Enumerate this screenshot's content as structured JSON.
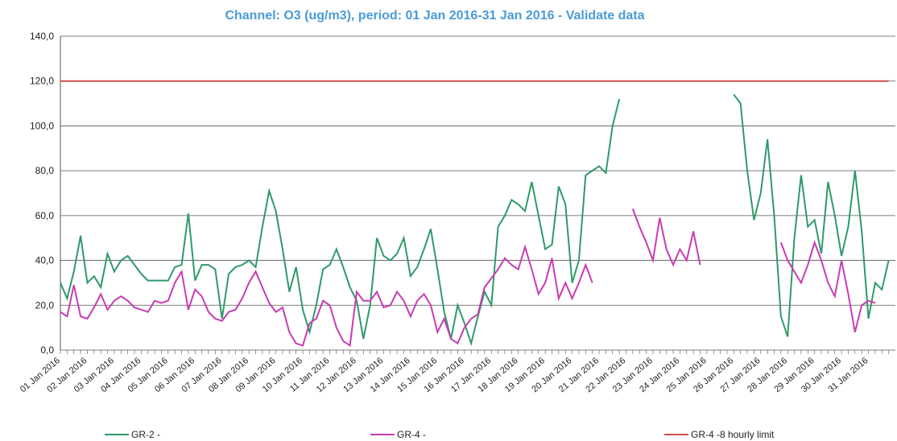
{
  "chart_data": {
    "type": "line",
    "title": "Channel: O3 (ug/m3), period: 01 Jan 2016-31 Jan 2016 - Validate data",
    "categories": [
      "01 Jan 2016",
      null,
      null,
      null,
      "02 Jan 2016",
      null,
      null,
      null,
      "03 Jan 2016",
      null,
      null,
      null,
      "04 Jan 2016",
      null,
      null,
      null,
      "05 Jan 2016",
      null,
      null,
      null,
      "06 Jan 2016",
      null,
      null,
      null,
      "07 Jan 2016",
      null,
      null,
      null,
      "08 Jan 2016",
      null,
      null,
      null,
      "09 Jan 2016",
      null,
      null,
      null,
      "10 Jan 2016",
      null,
      null,
      null,
      "11 Jan 2016",
      null,
      null,
      null,
      "12 Jan 2016",
      null,
      null,
      null,
      "13 Jan 2016",
      null,
      null,
      null,
      "14 Jan 2016",
      null,
      null,
      null,
      "15 Jan 2016",
      null,
      null,
      null,
      "16 Jan 2016",
      null,
      null,
      null,
      "17 Jan 2016",
      null,
      null,
      null,
      "18 Jan 2016",
      null,
      null,
      null,
      "19 Jan 2016",
      null,
      null,
      null,
      "20 Jan 2016",
      null,
      null,
      null,
      "21 Jan 2016",
      null,
      null,
      null,
      "22 Jan 2016",
      null,
      null,
      null,
      "23 Jan 2016",
      null,
      null,
      null,
      "24 Jan 2016",
      null,
      null,
      null,
      "25 Jan 2016",
      null,
      null,
      null,
      "26 Jan 2016",
      null,
      null,
      null,
      "27 Jan 2016",
      null,
      null,
      null,
      "28 Jan 2016",
      null,
      null,
      null,
      "29 Jan 2016",
      null,
      null,
      null,
      "30 Jan 2016",
      null,
      null,
      null,
      "31 Jan 2016",
      null,
      null,
      null
    ],
    "series": [
      {
        "name": "GR-2 -",
        "color": "#2e9a6a",
        "values": [
          30,
          23,
          35,
          51,
          30,
          33,
          28,
          43,
          35,
          40,
          42,
          38,
          34,
          31,
          31,
          31,
          31,
          37,
          38,
          61,
          31,
          38,
          38,
          36,
          14,
          34,
          37,
          38,
          40,
          37,
          55,
          71,
          62,
          45,
          26,
          37,
          18,
          8,
          20,
          36,
          38,
          45,
          37,
          28,
          22,
          5,
          20,
          50,
          42,
          40,
          43,
          50,
          33,
          37,
          45,
          54,
          36,
          17,
          5,
          20,
          12,
          3,
          15,
          26,
          20,
          55,
          60,
          67,
          65,
          62,
          75,
          60,
          45,
          47,
          73,
          65,
          30,
          40,
          78,
          80,
          82,
          79,
          100,
          112,
          null,
          null,
          null,
          null,
          null,
          null,
          null,
          null,
          null,
          null,
          null,
          null,
          null,
          null,
          null,
          null,
          114,
          110,
          80,
          58,
          70,
          94,
          60,
          15,
          6,
          50,
          78,
          55,
          58,
          43,
          75,
          60,
          42,
          55,
          80,
          53,
          14,
          30,
          27,
          40
        ]
      },
      {
        "name": "GR-4 -",
        "color": "#c83cb4",
        "values": [
          17,
          15,
          29,
          15,
          14,
          19,
          25,
          18,
          22,
          24,
          22,
          19,
          18,
          17,
          22,
          21,
          22,
          30,
          35,
          18,
          27,
          24,
          17,
          14,
          13,
          17,
          18,
          23,
          30,
          35,
          28,
          21,
          17,
          19,
          8,
          3,
          2,
          12,
          14,
          22,
          20,
          10,
          4,
          2,
          26,
          22,
          22,
          26,
          19,
          20,
          26,
          22,
          15,
          22,
          25,
          20,
          8,
          14,
          5,
          3,
          10,
          14,
          16,
          28,
          32,
          36,
          41,
          38,
          36,
          46,
          36,
          25,
          30,
          41,
          23,
          30,
          23,
          30,
          38,
          30,
          null,
          null,
          null,
          null,
          null,
          63,
          55,
          48,
          40,
          59,
          45,
          38,
          45,
          40,
          53,
          38,
          null,
          null,
          null,
          null,
          null,
          null,
          null,
          null,
          null,
          null,
          null,
          48,
          40,
          35,
          30,
          38,
          48,
          40,
          30,
          24,
          40,
          25,
          8,
          20,
          22,
          21,
          null,
          null
        ]
      },
      {
        "name": "GR-4 -8 hourly limit",
        "color": "#d0504a",
        "values": [
          120,
          120,
          120,
          120,
          120,
          120,
          120,
          120,
          120,
          120,
          120,
          120,
          120,
          120,
          120,
          120,
          120,
          120,
          120,
          120,
          120,
          120,
          120,
          120,
          120,
          120,
          120,
          120,
          120,
          120,
          120,
          120,
          120,
          120,
          120,
          120,
          120,
          120,
          120,
          120,
          120,
          120,
          120,
          120,
          120,
          120,
          120,
          120,
          120,
          120,
          120,
          120,
          120,
          120,
          120,
          120,
          120,
          120,
          120,
          120,
          120,
          120,
          120,
          120,
          120,
          120,
          120,
          120,
          120,
          120,
          120,
          120,
          120,
          120,
          120,
          120,
          120,
          120,
          120,
          120,
          120,
          120,
          120,
          120,
          120,
          120,
          120,
          120,
          120,
          120,
          120,
          120,
          120,
          120,
          120,
          120,
          120,
          120,
          120,
          120,
          120,
          120,
          120,
          120,
          120,
          120,
          120,
          120,
          120,
          120,
          120,
          120,
          120,
          120,
          120,
          120,
          120,
          120,
          120,
          120,
          120,
          120,
          120,
          120
        ]
      }
    ],
    "ylim": [
      0,
      140
    ],
    "yticks": [
      {
        "value": 0,
        "label": "0,0"
      },
      {
        "value": 20,
        "label": "20,0"
      },
      {
        "value": 40,
        "label": "40,0"
      },
      {
        "value": 60,
        "label": "60,0"
      },
      {
        "value": 80,
        "label": "80,0"
      },
      {
        "value": 100,
        "label": "100,0"
      },
      {
        "value": 120,
        "label": "120,0"
      },
      {
        "value": 140,
        "label": "140,0"
      }
    ],
    "grid": true
  }
}
